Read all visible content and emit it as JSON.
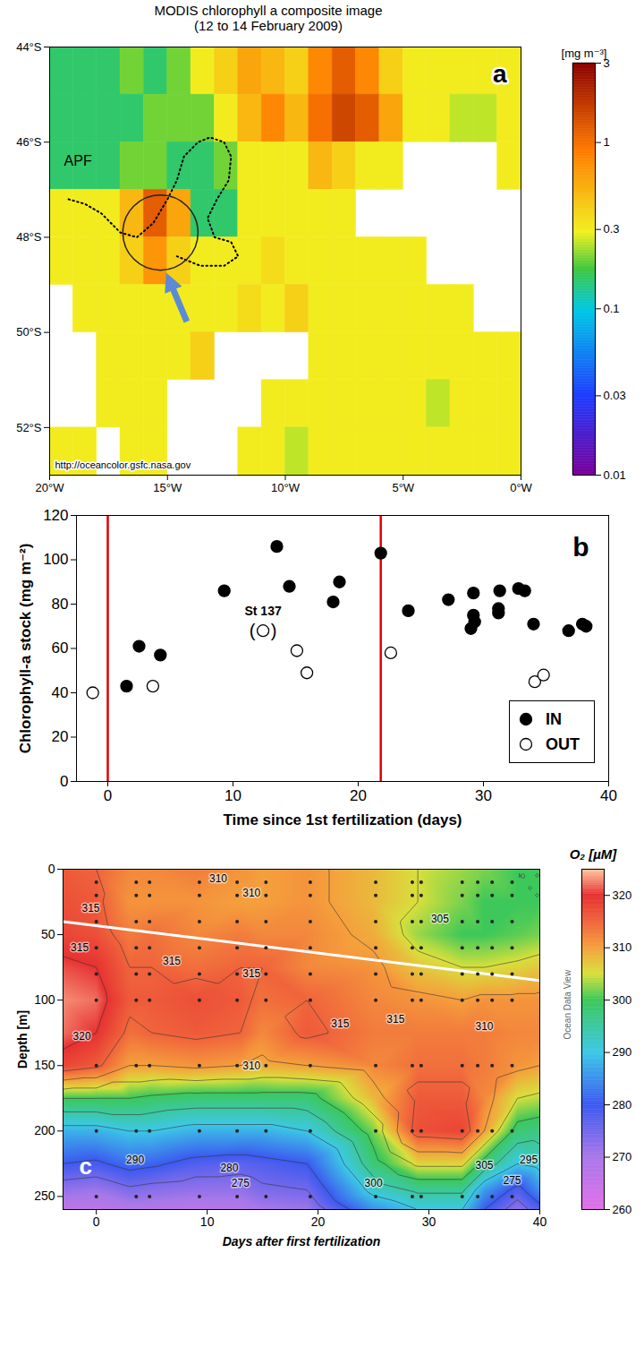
{
  "chart_data": [
    {
      "type": "heatmap",
      "panel_label": "a",
      "title": "MODIS chlorophyll a composite image (12 to 14 February 2009)",
      "xlim": [
        -20,
        0
      ],
      "ylim": [
        -53,
        -44
      ],
      "xticks": [
        {
          "value": -20,
          "label": "20°W"
        },
        {
          "value": -15,
          "label": "15°W"
        },
        {
          "value": -10,
          "label": "10°W"
        },
        {
          "value": -5,
          "label": "5°W"
        },
        {
          "value": 0,
          "label": "0°W"
        }
      ],
      "yticks": [
        {
          "value": -44,
          "label": "44°S"
        },
        {
          "value": -46,
          "label": "46°S"
        },
        {
          "value": -48,
          "label": "48°S"
        },
        {
          "value": -50,
          "label": "50°S"
        },
        {
          "value": -52,
          "label": "52°S"
        }
      ],
      "cells": {
        "lon_edges": [
          -20,
          -19,
          -18,
          -17,
          -16,
          -15,
          -14,
          -13,
          -12,
          -11,
          -10,
          -9,
          -8,
          -7,
          -6,
          -5,
          -4,
          -3,
          -2,
          -1,
          0
        ],
        "lat_edges": [
          -44,
          -45,
          -46,
          -47,
          -48,
          -49,
          -50,
          -51,
          -52,
          -53
        ],
        "values": [
          [
            0.15,
            0.15,
            0.15,
            0.2,
            0.15,
            0.2,
            0.3,
            0.4,
            0.6,
            0.5,
            0.4,
            0.8,
            1.2,
            0.8,
            0.4,
            0.3,
            0.3,
            0.3,
            0.3,
            0.3
          ],
          [
            0.15,
            0.15,
            0.15,
            0.15,
            0.2,
            0.2,
            0.2,
            0.3,
            0.5,
            0.8,
            0.5,
            1.0,
            1.5,
            1.2,
            0.6,
            0.3,
            0.3,
            0.25,
            0.25,
            0.3
          ],
          [
            0.15,
            0.15,
            0.15,
            0.2,
            0.2,
            0.15,
            0.15,
            0.2,
            0.3,
            0.3,
            0.3,
            0.5,
            0.4,
            0.3,
            0.3,
            null,
            null,
            null,
            null,
            0.3
          ],
          [
            0.3,
            0.3,
            0.3,
            0.5,
            1.2,
            0.6,
            0.15,
            0.15,
            0.3,
            0.3,
            0.3,
            0.3,
            0.3,
            null,
            null,
            null,
            null,
            null,
            null,
            null
          ],
          [
            0.3,
            0.3,
            0.3,
            0.4,
            0.7,
            0.4,
            0.3,
            0.3,
            0.3,
            0.35,
            0.3,
            0.3,
            0.3,
            0.3,
            0.3,
            0.3,
            null,
            null,
            null,
            null
          ],
          [
            null,
            0.3,
            0.3,
            0.3,
            0.3,
            0.3,
            0.3,
            0.3,
            0.35,
            0.3,
            0.4,
            0.3,
            0.3,
            0.3,
            0.3,
            0.3,
            0.3,
            0.3,
            null,
            null
          ],
          [
            null,
            null,
            0.3,
            0.3,
            0.3,
            0.3,
            0.4,
            null,
            null,
            null,
            null,
            0.3,
            0.3,
            0.3,
            0.3,
            0.3,
            0.3,
            0.3,
            0.3,
            0.3
          ],
          [
            null,
            null,
            0.3,
            0.3,
            0.3,
            null,
            null,
            null,
            null,
            0.3,
            0.3,
            0.3,
            0.3,
            0.3,
            0.3,
            0.3,
            0.25,
            0.3,
            0.3,
            0.3
          ],
          [
            0.3,
            0.3,
            null,
            0.3,
            0.3,
            null,
            null,
            null,
            0.3,
            0.3,
            0.25,
            0.3,
            0.3,
            0.3,
            0.3,
            0.3,
            0.3,
            0.3,
            0.3,
            0.3
          ]
        ]
      },
      "colorbar": {
        "label": "[mg m⁻³]",
        "range": [
          0.01,
          3
        ],
        "ticks": [
          0.01,
          0.03,
          0.1,
          0.3,
          1,
          3
        ],
        "log": true
      },
      "front": {
        "label": "APF",
        "label_lon": -18.8,
        "label_lat": -46.4,
        "line_style": "dotted",
        "lon": [
          -19.2,
          -18.5,
          -17.8,
          -17.0,
          -16.3,
          -15.6,
          -15.0,
          -14.6,
          -14.3,
          -13.7,
          -13.2,
          -12.6,
          -12.3,
          -12.4,
          -12.9,
          -13.3,
          -13.0,
          -12.3,
          -12.0,
          -12.6,
          -13.6,
          -14.6
        ],
        "lat": [
          -47.2,
          -47.3,
          -47.5,
          -47.9,
          -48.0,
          -47.7,
          -47.2,
          -46.8,
          -46.3,
          -46.0,
          -45.9,
          -46.0,
          -46.3,
          -46.8,
          -47.2,
          -47.6,
          -48.0,
          -48.1,
          -48.4,
          -48.6,
          -48.6,
          -48.4
        ]
      },
      "circle": {
        "lon": -15.3,
        "lat": -47.9
      },
      "source": "http://oceancolor.gsfc.nasa.gov"
    },
    {
      "type": "scatter",
      "panel_label": "b",
      "xlabel": "Time since 1st fertilization (days)",
      "ylabel": "Chlorophyll-a stock (mg m⁻²)",
      "xlim": [
        -2.5,
        40
      ],
      "ylim": [
        0,
        120
      ],
      "xticks": [
        0,
        10,
        20,
        30,
        40
      ],
      "yticks": [
        0,
        20,
        40,
        60,
        80,
        100,
        120
      ],
      "series": [
        {
          "name": "IN",
          "color": "#000000",
          "marker": "filled circle",
          "x": [
            1.5,
            2.5,
            4.2,
            9.3,
            13.5,
            14.5,
            18.0,
            18.5,
            21.8,
            24.0,
            27.2,
            29.0,
            29.2,
            29.3,
            29.2,
            31.2,
            31.3,
            31.2,
            32.8,
            33.3,
            34.0,
            36.8,
            37.9,
            38.2
          ],
          "values": [
            43,
            61,
            57,
            86,
            106,
            88,
            81,
            90,
            103,
            77,
            82,
            69,
            75,
            72,
            85,
            78,
            86,
            76,
            87,
            86,
            71,
            68,
            71,
            70
          ]
        },
        {
          "name": "OUT",
          "color": "#000000",
          "marker": "open circle",
          "x": [
            -1.2,
            3.6,
            12.4,
            15.1,
            15.9,
            22.6,
            34.1,
            34.8
          ],
          "values": [
            40,
            43,
            68,
            59,
            49,
            58,
            45,
            48
          ]
        }
      ],
      "vlines": {
        "x": [
          0,
          21.8
        ],
        "color": "#e00000"
      },
      "annotations": [
        {
          "text": "St 137",
          "x": 12.4,
          "y": 68,
          "brackets": [
            "(",
            ")"
          ]
        }
      ],
      "legend": "lower right"
    },
    {
      "type": "contour",
      "panel_label": "c",
      "title": "O₂ [µM]",
      "xlabel": "Days after first fertilization",
      "ylabel": "Depth [m]",
      "xlim": [
        -3,
        40
      ],
      "ylim": [
        0,
        260
      ],
      "xticks": [
        0,
        10,
        20,
        30,
        40
      ],
      "yticks": [
        0,
        50,
        100,
        150,
        200,
        250
      ],
      "field": {
        "days": [
          -3,
          0,
          3,
          5,
          9,
          13,
          15,
          19,
          25,
          29,
          33,
          35,
          38,
          40
        ],
        "depths": [
          0,
          25,
          50,
          75,
          100,
          125,
          150,
          175,
          200,
          225,
          245,
          260
        ],
        "values": [
          [
            316,
            317,
            318,
            321,
            323,
            322,
            318,
            300,
            288,
            280,
            272,
            266
          ],
          [
            315,
            316,
            317,
            320,
            322,
            320,
            316,
            300,
            288,
            279,
            271,
            266
          ],
          [
            312,
            311,
            313,
            315,
            316,
            314,
            310,
            300,
            290,
            282,
            274,
            268
          ],
          [
            312,
            311,
            314,
            315,
            316,
            315,
            310,
            299,
            290,
            281,
            273,
            268
          ],
          [
            313,
            311,
            312,
            314,
            317,
            316,
            311,
            298,
            288,
            278,
            272,
            267
          ],
          [
            311,
            310,
            313,
            315,
            316,
            315,
            310,
            298,
            288,
            277,
            272,
            268
          ],
          [
            310,
            310,
            312,
            315,
            314,
            312,
            309,
            298,
            288,
            278,
            274,
            270
          ],
          [
            311,
            311,
            312,
            312,
            315,
            316,
            310,
            298,
            290,
            280,
            275,
            271
          ],
          [
            308,
            308,
            309,
            311,
            312,
            313,
            312,
            308,
            302,
            298,
            292,
            285
          ],
          [
            305,
            305,
            303,
            307,
            311,
            313,
            314,
            316,
            317,
            306,
            296,
            290
          ],
          [
            303,
            302,
            300,
            305,
            310,
            313,
            314,
            316,
            318,
            306,
            296,
            290
          ],
          [
            302,
            300,
            300,
            305,
            311,
            313,
            313,
            312,
            310,
            298,
            286,
            280
          ],
          [
            300,
            300,
            301,
            306,
            311,
            312,
            311,
            305,
            298,
            290,
            278,
            272
          ],
          [
            300,
            300,
            302,
            307,
            311,
            312,
            310,
            304,
            297,
            292,
            285,
            278
          ]
        ]
      },
      "colorbar": {
        "range": [
          260,
          325
        ],
        "ticks": [
          260,
          270,
          280,
          290,
          300,
          310,
          320
        ]
      },
      "contour_labels": [
        {
          "x": -0.5,
          "y": 30,
          "value": 315
        },
        {
          "x": 11,
          "y": 7,
          "value": 310
        },
        {
          "x": 14,
          "y": 18,
          "value": 310
        },
        {
          "x": -1.5,
          "y": 60,
          "value": 315
        },
        {
          "x": 6.8,
          "y": 70,
          "value": 315
        },
        {
          "x": 14,
          "y": 80,
          "value": 315
        },
        {
          "x": -1.3,
          "y": 128,
          "value": 320
        },
        {
          "x": 14,
          "y": 150,
          "value": 310
        },
        {
          "x": 22,
          "y": 118,
          "value": 315
        },
        {
          "x": 31,
          "y": 38,
          "value": 305
        },
        {
          "x": 35,
          "y": 120,
          "value": 310
        },
        {
          "x": 27,
          "y": 115,
          "value": 315
        },
        {
          "x": 3.5,
          "y": 222,
          "value": 290
        },
        {
          "x": 12,
          "y": 228,
          "value": 280
        },
        {
          "x": 13,
          "y": 240,
          "value": 275
        },
        {
          "x": 25,
          "y": 240,
          "value": 300
        },
        {
          "x": 35,
          "y": 226,
          "value": 305
        },
        {
          "x": 39,
          "y": 222,
          "value": 295
        },
        {
          "x": 37.5,
          "y": 238,
          "value": 275
        }
      ],
      "samples": {
        "days": [
          0,
          3.6,
          4.8,
          9.3,
          12.7,
          15.3,
          19.3,
          25.2,
          28.5,
          29.3,
          33,
          34.4,
          35.7,
          37.5
        ],
        "depths": [
          10,
          20,
          40,
          60,
          80,
          100,
          150,
          200,
          250
        ]
      },
      "line": {
        "x": [
          -3,
          40
        ],
        "y": [
          40,
          85
        ],
        "color": "#ffffff"
      },
      "credit": "Ocean Data View"
    }
  ]
}
